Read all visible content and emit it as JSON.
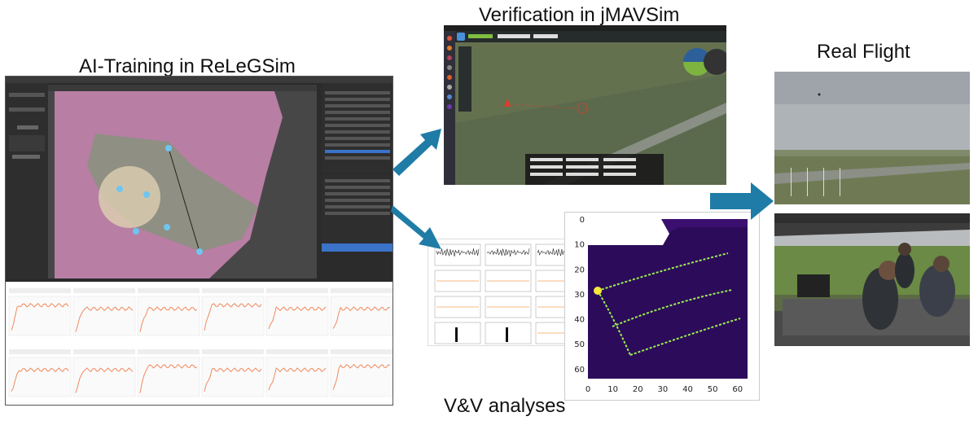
{
  "captions": {
    "training": "AI-Training in ReLeGSim",
    "verification": "Verification in jMAVSim",
    "real_flight": "Real Flight",
    "vv": "V&V analyses"
  },
  "heatmap": {
    "x_ticks": [
      "0",
      "10",
      "20",
      "30",
      "40",
      "50",
      "60"
    ],
    "y_ticks": [
      "0",
      "10",
      "20",
      "30",
      "40",
      "50",
      "60"
    ]
  },
  "colors": {
    "arrow": "#1f7ca6",
    "map_pink": "#c98ab0",
    "heat_bg": "#3b0f70",
    "heat_line": "#9bef4f"
  }
}
